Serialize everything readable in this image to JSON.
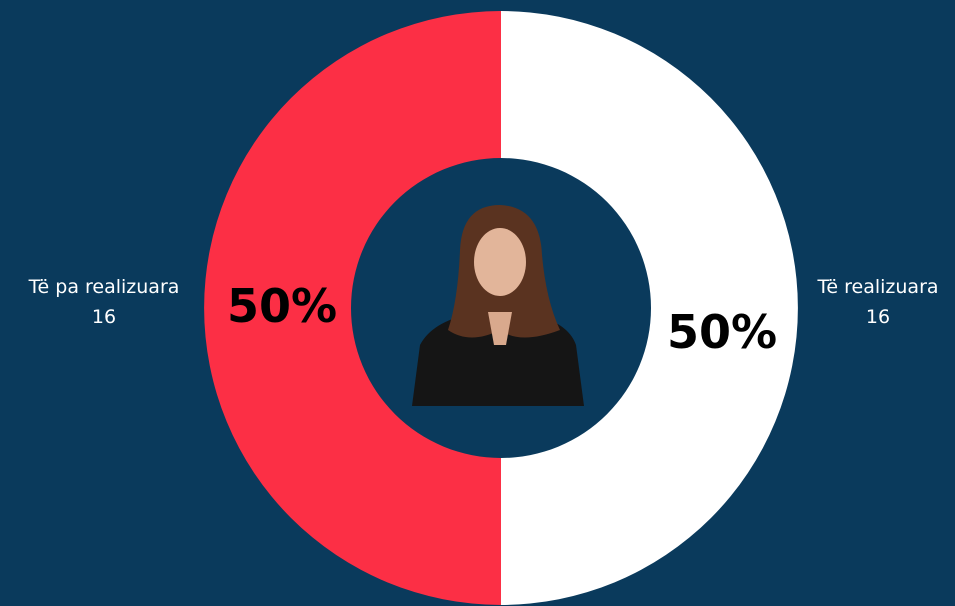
{
  "chart_data": {
    "type": "donut",
    "categories": [
      "Të realizuara",
      "Të pa realizuara"
    ],
    "values": [
      16,
      16
    ],
    "value_labels": [
      "50%",
      "50%"
    ],
    "colors": [
      "#ffffff",
      "#fc2f45"
    ]
  }
}
